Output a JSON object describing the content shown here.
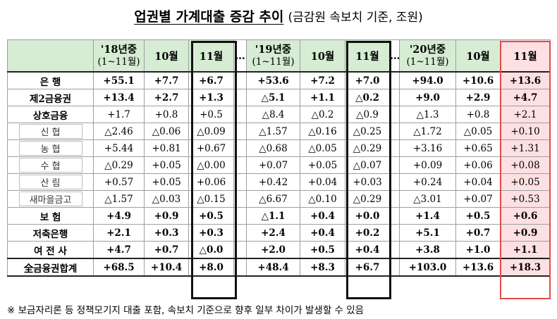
{
  "title": {
    "main": "업권별 가계대출 증감 추이",
    "sub": "(금감원 속보치 기준, 조원)"
  },
  "columns": {
    "g1": {
      "l1": "'18년중",
      "l2": "(1~11월)"
    },
    "g2": {
      "l1": "'19년중",
      "l2": "(1~11월)"
    },
    "g3": {
      "l1": "'20년중",
      "l2": "(1~11월)"
    },
    "oct": "10월",
    "nov": "11월",
    "gap": "…"
  },
  "rows": [
    {
      "label": "은 행",
      "style": "bold",
      "values": [
        "+55.1",
        "+7.7",
        "+6.7",
        "+53.6",
        "+7.2",
        "+7.0",
        "+94.0",
        "+10.6",
        "+13.6"
      ]
    },
    {
      "label": "제2금융권",
      "style": "bold",
      "values": [
        "+13.4",
        "+2.7",
        "+1.3",
        "△5.1",
        "+1.1",
        "△0.2",
        "+9.0",
        "+2.9",
        "+4.7"
      ]
    },
    {
      "label": "상호금융",
      "style": "l2",
      "values": [
        "+1.7",
        "+0.8",
        "+0.5",
        "△8.4",
        "△0.2",
        "△0.9",
        "△1.3",
        "+0.8",
        "+2.1"
      ]
    },
    {
      "label": "신 협",
      "style": "sub",
      "values": [
        "△2.46",
        "△0.06",
        "△0.09",
        "△1.57",
        "△0.16",
        "△0.25",
        "△1.72",
        "△0.05",
        "+0.10"
      ]
    },
    {
      "label": "농 협",
      "style": "sub",
      "values": [
        "+5.44",
        "+0.81",
        "+0.67",
        "△0.68",
        "△0.05",
        "△0.29",
        "+3.16",
        "+0.65",
        "+1.31"
      ]
    },
    {
      "label": "수 협",
      "style": "sub",
      "values": [
        "△0.29",
        "+0.05",
        "△0.00",
        "+0.07",
        "+0.05",
        "△0.07",
        "+0.09",
        "+0.06",
        "+0.08"
      ]
    },
    {
      "label": "산 림",
      "style": "sub",
      "values": [
        "+0.57",
        "+0.05",
        "+0.06",
        "+0.42",
        "+0.04",
        "+0.03",
        "+0.24",
        "+0.04",
        "+0.05"
      ]
    },
    {
      "label": "새마을금고",
      "style": "sub",
      "values": [
        "△1.57",
        "△0.03",
        "△0.15",
        "△6.67",
        "△0.10",
        "△0.29",
        "△3.01",
        "+0.07",
        "+0.53"
      ]
    },
    {
      "label": "보 험",
      "style": "bold",
      "values": [
        "+4.9",
        "+0.9",
        "+0.5",
        "△1.1",
        "+0.4",
        "+0.0",
        "+1.4",
        "+0.5",
        "+0.6"
      ]
    },
    {
      "label": "저축은행",
      "style": "bold",
      "values": [
        "+2.1",
        "+0.3",
        "+0.3",
        "+2.4",
        "+0.4",
        "+0.2",
        "+5.1",
        "+0.7",
        "+0.9"
      ]
    },
    {
      "label": "여 전 사",
      "style": "bold",
      "values": [
        "+4.7",
        "+0.7",
        "△0.0",
        "+2.0",
        "+0.5",
        "+0.4",
        "+3.8",
        "+1.0",
        "+1.1"
      ]
    },
    {
      "label": "全금융권합계",
      "style": "bold total",
      "values": [
        "+68.5",
        "+10.4",
        "+8.0",
        "+48.4",
        "+8.3",
        "+6.7",
        "+103.0",
        "+13.6",
        "+18.3"
      ]
    }
  ],
  "note": "※ 보금자리론 등 정책모기지 대출 포함, 속보치 기준으로 향후 일부 차이가 발생할 수 있음",
  "colors": {
    "header_bg": "#d6ecd3",
    "highlight_bg": "#fde0e2",
    "highlight_border": "#e74a4a",
    "frame_black": "#111111"
  }
}
